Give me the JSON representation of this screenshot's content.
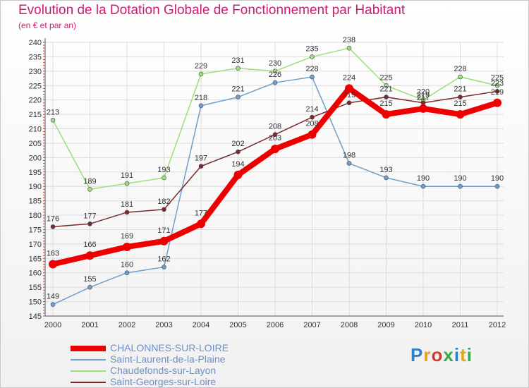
{
  "title": "Evolution de la Dotation Globale de Fonctionnement par Habitant",
  "subtitle": "(en € et par an)",
  "brand": {
    "letters": [
      "P",
      "r",
      "o",
      "x",
      "i",
      "t",
      "i"
    ],
    "colors": [
      "#2e7fc4",
      "#e8a317",
      "#d23c32",
      "#3aa84a",
      "#2e7fc4",
      "#e8a317",
      "#3aa84a"
    ]
  },
  "chart_data": {
    "type": "line",
    "title": "Evolution de la Dotation Globale de Fonctionnement par Habitant",
    "subtitle": "(en € et par an)",
    "x": [
      "2000",
      "2001",
      "2002",
      "2003",
      "2004",
      "2005",
      "2006",
      "2007",
      "2008",
      "2009",
      "2010",
      "2011",
      "2012"
    ],
    "ylim": [
      145,
      240
    ],
    "yticks": [
      145,
      150,
      155,
      160,
      165,
      170,
      175,
      180,
      185,
      190,
      195,
      200,
      205,
      210,
      215,
      220,
      225,
      230,
      235,
      240
    ],
    "grid": true,
    "legend": "bottom-left",
    "series": [
      {
        "name": "CHALONNES-SUR-LOIRE",
        "color": "#ee0000",
        "width": 8,
        "marker": 6,
        "values": [
          163,
          166,
          169,
          171,
          177,
          194,
          203,
          208,
          224,
          215,
          217,
          215,
          219
        ]
      },
      {
        "name": "Saint-Laurent-de-la-Plaine",
        "color": "#6f9fca",
        "width": 1.5,
        "marker": 3,
        "values": [
          149,
          155,
          160,
          162,
          218,
          221,
          226,
          228,
          198,
          193,
          190,
          190,
          190
        ]
      },
      {
        "name": "Chaudefonds-sur-Layon",
        "color": "#9be07a",
        "width": 1.5,
        "marker": 3,
        "values": [
          213,
          189,
          191,
          193,
          229,
          231,
          230,
          235,
          238,
          225,
          220,
          228,
          225
        ]
      },
      {
        "name": "Saint-Georges-sur-Loire",
        "color": "#7a2a2a",
        "width": 1.5,
        "marker": 3,
        "values": [
          176,
          177,
          181,
          182,
          197,
          202,
          208,
          214,
          219,
          221,
          219,
          221,
          223
        ]
      }
    ]
  }
}
